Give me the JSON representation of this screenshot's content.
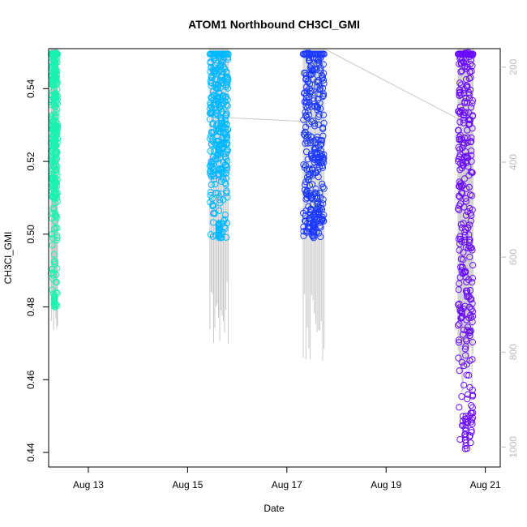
{
  "chart_data": {
    "type": "scatter",
    "title": "ATOM1 Northbound CH3Cl_GMI",
    "xlabel": "Date",
    "ylabel": "CH3Cl_GMI",
    "x_ticks": [
      "Aug 13",
      "Aug 15",
      "Aug 17",
      "Aug 19",
      "Aug 21"
    ],
    "x_tick_days": [
      13,
      15,
      17,
      19,
      21
    ],
    "xlim_days": [
      12.2,
      21.3
    ],
    "ylim": [
      0.436,
      0.551
    ],
    "y_ticks": [
      0.44,
      0.46,
      0.48,
      0.5,
      0.52,
      0.54
    ],
    "y_tick_labels": [
      "0.44",
      "0.46",
      "0.48",
      "0.50",
      "0.52",
      "0.54"
    ],
    "right_axis": {
      "label": "",
      "color": "#bdbdbd",
      "lim": [
        1042,
        161
      ],
      "ticks": [
        200,
        400,
        600,
        800,
        1000
      ],
      "tick_labels": [
        "200",
        "400",
        "600",
        "800",
        "1000"
      ]
    },
    "series": [
      {
        "color": "#1af2b0",
        "x_range": [
          12.25,
          12.38
        ],
        "y_range": [
          0.48,
          0.55
        ],
        "dense_range": [
          0.51,
          0.55
        ],
        "bottom_tail": [
          0.48,
          0.483
        ],
        "pressure_min": 780,
        "pressure_max": 200
      },
      {
        "color": "#00b8ff",
        "x_range": [
          15.45,
          15.82
        ],
        "y_range": [
          0.499,
          0.55
        ],
        "dense_range": [
          0.515,
          0.55
        ],
        "bottom_tail": [
          0.499,
          0.503
        ],
        "pressure_min": 790,
        "pressure_max": 200
      },
      {
        "color": "#1c39ff",
        "x_range": [
          17.33,
          17.75
        ],
        "y_range": [
          0.499,
          0.55
        ],
        "dense_range": [
          0.505,
          0.55
        ],
        "bottom_tail": [
          0.499,
          0.503
        ],
        "pressure_min": 820,
        "pressure_max": 200
      },
      {
        "color": "#6a0cff",
        "x_range": [
          20.45,
          20.75
        ],
        "y_range": [
          0.441,
          0.55
        ],
        "dense_range": [
          0.47,
          0.55
        ],
        "bottom_tail": [
          0.441,
          0.45
        ],
        "pressure_min": 900,
        "pressure_max": 200
      }
    ],
    "transit_path": [
      {
        "x": 15.82,
        "y": 0.532
      },
      {
        "x": 17.35,
        "y": 0.531
      },
      {
        "x": 17.75,
        "y": 0.551
      },
      {
        "x": 20.55,
        "y": 0.531
      }
    ],
    "pressure_line_color": "#c8c8c8",
    "grid": false,
    "legend": "none"
  }
}
